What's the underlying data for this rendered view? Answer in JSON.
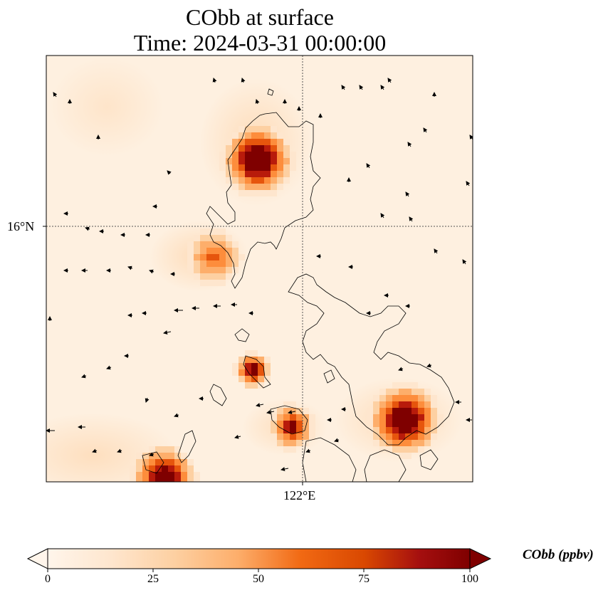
{
  "title": {
    "line1": "CObb at surface",
    "line2": "Time: 2024-03-31 00:00:00"
  },
  "map": {
    "lat_label": "16°N",
    "lon_label": "122°E",
    "colormap": [
      "#fff5eb",
      "#fee6ce",
      "#fdd0a2",
      "#fdae6b",
      "#fd8d3c",
      "#e6550d",
      "#b81b0b",
      "#7f0000"
    ]
  },
  "colorbar": {
    "label": "CObb (ppbv)",
    "ticks": [
      "0",
      "25",
      "50",
      "75",
      "100"
    ],
    "min": 0,
    "max": 100
  }
}
